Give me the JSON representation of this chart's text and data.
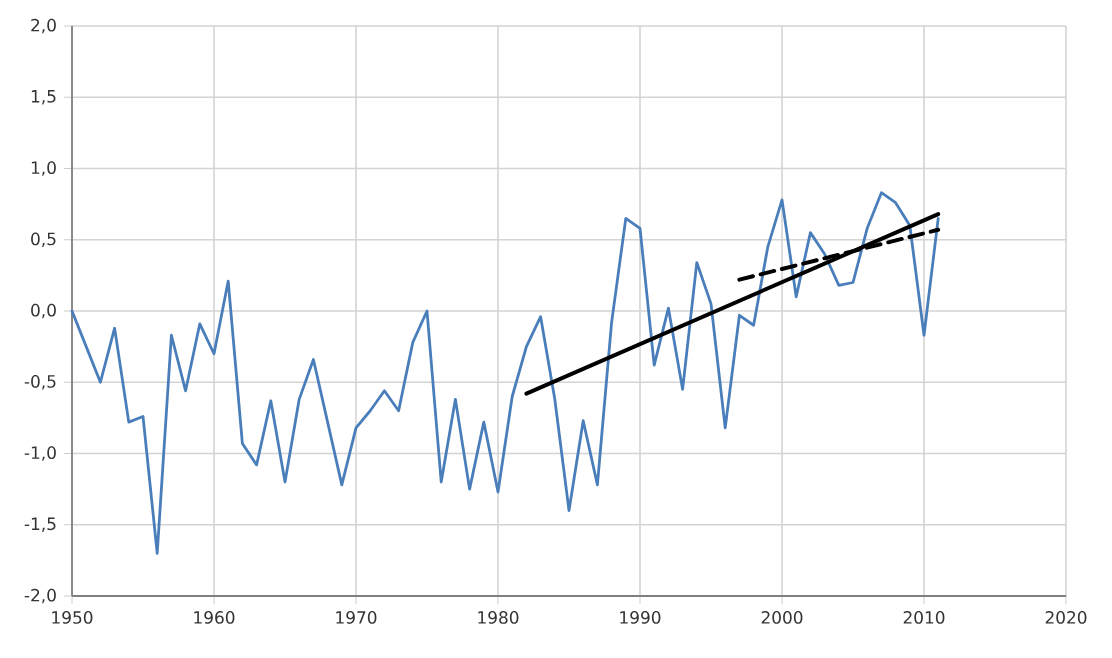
{
  "chart_data": {
    "type": "line",
    "grid": true,
    "x": [
      1950,
      1951,
      1952,
      1953,
      1954,
      1955,
      1956,
      1957,
      1958,
      1959,
      1960,
      1961,
      1962,
      1963,
      1964,
      1965,
      1966,
      1967,
      1968,
      1969,
      1970,
      1971,
      1972,
      1973,
      1974,
      1975,
      1976,
      1977,
      1978,
      1979,
      1980,
      1981,
      1982,
      1983,
      1984,
      1985,
      1986,
      1987,
      1988,
      1989,
      1990,
      1991,
      1992,
      1993,
      1994,
      1995,
      1996,
      1997,
      1998,
      1999,
      2000,
      2001,
      2002,
      2003,
      2004,
      2005,
      2006,
      2007,
      2008,
      2009,
      2010,
      2011
    ],
    "series": [
      {
        "color": "#4a7ebb",
        "line_style": "solid",
        "values": [
          0.0,
          -0.25,
          -0.5,
          -0.12,
          -0.78,
          -0.74,
          -1.7,
          -0.17,
          -0.56,
          -0.09,
          -0.3,
          0.21,
          -0.93,
          -1.08,
          -0.63,
          -1.2,
          -0.62,
          -0.34,
          -0.78,
          -1.22,
          -0.82,
          -0.7,
          -0.56,
          -0.7,
          -0.22,
          0.0,
          -1.2,
          -0.62,
          -1.25,
          -0.78,
          -1.27,
          -0.6,
          -0.25,
          -0.04,
          -0.62,
          -1.4,
          -0.77,
          -1.22,
          -0.08,
          0.65,
          0.58,
          -0.38,
          0.02,
          -0.55,
          0.34,
          0.05,
          -0.82,
          -0.03,
          -0.1,
          0.45,
          0.78,
          0.1,
          0.55,
          0.4,
          0.18,
          0.2,
          0.58,
          0.83,
          0.76,
          0.6,
          -0.17,
          0.65
        ]
      },
      {
        "color": "#000000",
        "line_style": "solid",
        "x": [
          1982,
          2011
        ],
        "values": [
          -0.58,
          0.68
        ]
      },
      {
        "color": "#000000",
        "line_style": "dashed",
        "x": [
          1997,
          2011
        ],
        "values": [
          0.22,
          0.57
        ]
      }
    ],
    "xlim": [
      1950,
      2020
    ],
    "ylim": [
      -2.0,
      2.0
    ],
    "xticks": [
      1950,
      1960,
      1970,
      1980,
      1990,
      2000,
      2010,
      2020
    ],
    "yticks": [
      {
        "value": -2.0,
        "label": "-2,0"
      },
      {
        "value": -1.5,
        "label": "-1,5"
      },
      {
        "value": -1.0,
        "label": "-1,0"
      },
      {
        "value": -0.5,
        "label": "-0,5"
      },
      {
        "value": 0.0,
        "label": "0,0"
      },
      {
        "value": 0.5,
        "label": "0,5"
      },
      {
        "value": 1.0,
        "label": "1,0"
      },
      {
        "value": 1.5,
        "label": "1,5"
      },
      {
        "value": 2.0,
        "label": "2,0"
      }
    ]
  }
}
